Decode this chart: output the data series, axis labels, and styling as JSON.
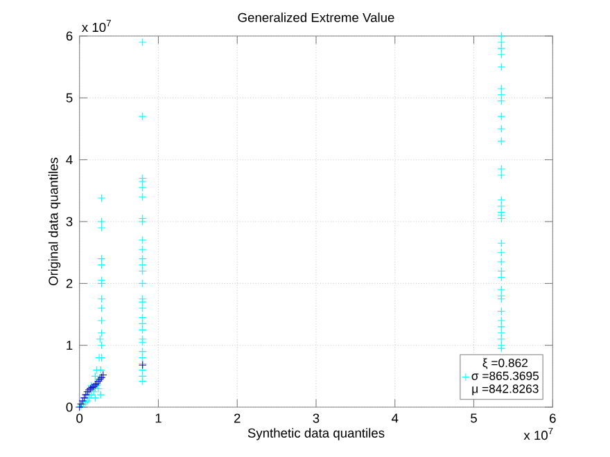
{
  "chart_data": {
    "type": "scatter",
    "title": "Generalized Extreme Value",
    "xlabel": "Synthetic data quantiles",
    "ylabel": "Original data quantiles",
    "annotations": [
      "ξ =0.862",
      "σ =865.3695",
      "μ =842.8263",
      "x 10$^{7}$",
      "x 10$^{7}$"
    ],
    "xlim": [
      0,
      6
    ],
    "ylim": [
      0,
      6
    ],
    "xticks": [
      0,
      1,
      2,
      3,
      4,
      5,
      6
    ],
    "yticks": [
      0,
      1,
      2,
      3,
      4,
      5,
      6
    ],
    "grid": true,
    "marker": "cross",
    "series": [
      {
        "color": "#00ffff",
        "x": [
          0.02,
          0.05,
          0.08,
          0.1,
          0.12,
          0.15,
          0.18,
          0.2,
          0.22,
          0.25,
          0.27,
          0.28,
          0.28,
          0.28,
          0.28,
          0.28,
          0.28,
          0.28,
          0.28,
          0.28,
          0.28,
          0.28,
          0.28,
          0.28,
          0.25,
          0.22,
          0.26,
          0.2,
          0.15,
          0.1,
          0.24,
          0.2,
          0.27,
          0.8,
          0.8,
          0.8,
          0.8,
          0.8,
          0.8,
          0.8,
          0.8,
          0.8,
          0.8,
          0.8,
          0.8,
          0.8,
          0.8,
          0.8,
          0.8,
          0.8,
          0.8,
          0.8,
          0.8,
          0.8,
          0.8,
          0.8,
          0.8,
          0.8,
          0.8,
          0.8,
          0.8,
          5.35,
          5.35,
          5.35,
          5.35,
          5.35,
          5.35,
          5.35,
          5.35,
          5.35,
          5.35,
          5.35,
          5.35,
          5.35,
          5.35,
          5.35,
          5.35,
          5.35,
          5.35,
          5.35,
          5.35,
          5.35,
          5.35,
          5.35,
          5.35,
          5.35,
          5.35,
          5.35,
          5.35,
          5.35,
          5.35,
          5.35,
          5.35,
          5.35
        ],
        "values": [
          0.02,
          0.05,
          0.08,
          0.1,
          0.15,
          0.2,
          0.25,
          0.3,
          0.35,
          0.45,
          0.6,
          0.8,
          1.0,
          1.2,
          1.4,
          1.6,
          1.75,
          2.0,
          2.05,
          2.3,
          2.4,
          2.9,
          3.0,
          3.38,
          0.8,
          0.6,
          1.1,
          0.5,
          0.35,
          0.2,
          0.3,
          0.15,
          0.2,
          0.42,
          0.5,
          0.6,
          0.7,
          0.8,
          0.9,
          1.05,
          1.1,
          1.25,
          1.35,
          1.45,
          1.6,
          1.7,
          1.75,
          2.0,
          2.2,
          2.3,
          2.4,
          2.55,
          2.7,
          3.0,
          3.05,
          3.4,
          3.55,
          3.65,
          3.7,
          4.7,
          5.9,
          0.95,
          1.0,
          1.1,
          1.2,
          1.3,
          1.4,
          1.55,
          1.75,
          1.8,
          1.9,
          2.1,
          2.2,
          2.35,
          2.5,
          2.65,
          3.05,
          3.1,
          3.15,
          3.25,
          3.35,
          3.75,
          3.85,
          4.3,
          4.5,
          4.7,
          4.95,
          5.05,
          5.15,
          5.5,
          5.7,
          5.8,
          5.9,
          6.0
        ]
      },
      {
        "color": "#0000cc",
        "x": [
          0,
          0.02,
          0.04,
          0.06,
          0.08,
          0.1,
          0.12,
          0.14,
          0.16,
          0.18,
          0.2,
          0.22,
          0.24,
          0.26,
          0.28,
          0.3,
          0.8
        ],
        "values": [
          0,
          0.05,
          0.1,
          0.15,
          0.2,
          0.25,
          0.28,
          0.3,
          0.32,
          0.33,
          0.36,
          0.38,
          0.42,
          0.45,
          0.48,
          0.52,
          0.68
        ]
      }
    ]
  }
}
